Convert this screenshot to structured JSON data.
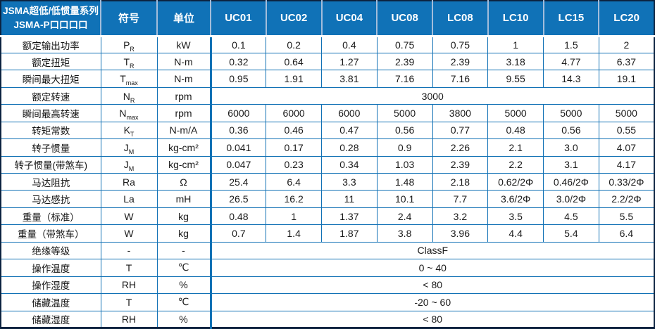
{
  "header": {
    "series_line1": "JSMA超低/低惯量系列",
    "series_line2": "JSMA-P口口口口",
    "symbol_col": "符号",
    "unit_col": "单位",
    "models": [
      "UC01",
      "UC02",
      "UC04",
      "UC08",
      "LC08",
      "LC10",
      "LC15",
      "LC20"
    ]
  },
  "rows": [
    {
      "label": "额定输出功率",
      "symbol": "P",
      "sub": "R",
      "unit": "kW",
      "values": [
        "0.1",
        "0.2",
        "0.4",
        "0.75",
        "0.75",
        "1",
        "1.5",
        "2"
      ]
    },
    {
      "label": "额定扭矩",
      "symbol": "T",
      "sub": "R",
      "unit": "N-m",
      "values": [
        "0.32",
        "0.64",
        "1.27",
        "2.39",
        "2.39",
        "3.18",
        "4.77",
        "6.37"
      ]
    },
    {
      "label": "瞬间最大扭矩",
      "symbol": "T",
      "sub": "max",
      "unit": "N-m",
      "values": [
        "0.95",
        "1.91",
        "3.81",
        "7.16",
        "7.16",
        "9.55",
        "14.3",
        "19.1"
      ]
    },
    {
      "label": "额定转速",
      "symbol": "N",
      "sub": "R",
      "unit": "rpm",
      "merged": "3000"
    },
    {
      "label": "瞬间最高转速",
      "symbol": "N",
      "sub": "max",
      "unit": "rpm",
      "values": [
        "6000",
        "6000",
        "6000",
        "5000",
        "3800",
        "5000",
        "5000",
        "5000"
      ]
    },
    {
      "label": "转矩常数",
      "symbol": "K",
      "sub": "T",
      "unit": "N-m/A",
      "values": [
        "0.36",
        "0.46",
        "0.47",
        "0.56",
        "0.77",
        "0.48",
        "0.56",
        "0.55"
      ]
    },
    {
      "label": "转子惯量",
      "symbol": "J",
      "sub": "M",
      "unit": "kg-cm²",
      "values": [
        "0.041",
        "0.17",
        "0.28",
        "0.9",
        "2.26",
        "2.1",
        "3.0",
        "4.07"
      ]
    },
    {
      "label": "转子惯量(带煞车)",
      "symbol": "J",
      "sub": "M",
      "unit": "kg-cm²",
      "values": [
        "0.047",
        "0.23",
        "0.34",
        "1.03",
        "2.39",
        "2.2",
        "3.1",
        "4.17"
      ]
    },
    {
      "label": "马达阻抗",
      "symbol": "Ra",
      "sub": "",
      "unit": "Ω",
      "values": [
        "25.4",
        "6.4",
        "3.3",
        "1.48",
        "2.18",
        "0.62/2Φ",
        "0.46/2Φ",
        "0.33/2Φ"
      ]
    },
    {
      "label": "马达感抗",
      "symbol": "La",
      "sub": "",
      "unit": "mH",
      "values": [
        "26.5",
        "16.2",
        "11",
        "10.1",
        "7.7",
        "3.6/2Φ",
        "3.0/2Φ",
        "2.2/2Φ"
      ]
    },
    {
      "label": "重量（标准）",
      "symbol": "W",
      "sub": "",
      "unit": "kg",
      "values": [
        "0.48",
        "1",
        "1.37",
        "2.4",
        "3.2",
        "3.5",
        "4.5",
        "5.5"
      ]
    },
    {
      "label": "重量（带煞车）",
      "symbol": "W",
      "sub": "",
      "unit": "kg",
      "values": [
        "0.7",
        "1.4",
        "1.87",
        "3.8",
        "3.96",
        "4.4",
        "5.4",
        "6.4"
      ]
    },
    {
      "label": "绝缘等级",
      "symbol": "-",
      "sub": "",
      "unit": "-",
      "merged": "ClassF"
    },
    {
      "label": "操作温度",
      "symbol": "T",
      "sub": "",
      "unit": "℃",
      "merged": "0 ~ 40"
    },
    {
      "label": "操作湿度",
      "symbol": "RH",
      "sub": "",
      "unit": "%",
      "merged": "< 80"
    },
    {
      "label": "储藏温度",
      "symbol": "T",
      "sub": "",
      "unit": "℃",
      "merged": "-20 ~ 60"
    },
    {
      "label": "储藏湿度",
      "symbol": "RH",
      "sub": "",
      "unit": "%",
      "merged": "< 80"
    }
  ],
  "colors": {
    "header_bg": "#1072B7",
    "grid_border": "#1171B5",
    "outer_border": "#0C2340",
    "header_separator": "#A3BDDB",
    "header_text": "#FFFFFF",
    "cell_text": "#1A1A1A"
  }
}
